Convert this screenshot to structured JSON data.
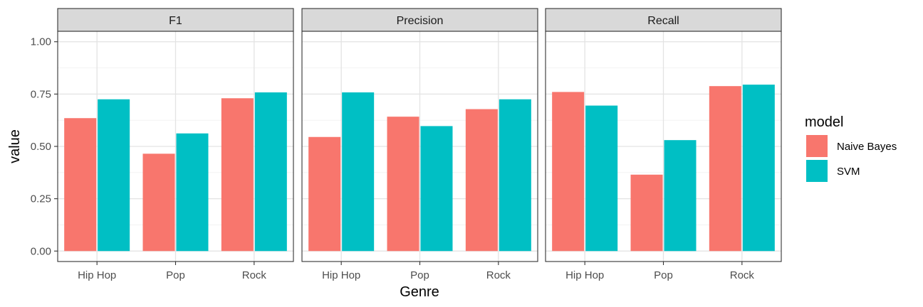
{
  "chart_data": {
    "type": "bar",
    "facet_layout": "faceted horizontally by metric",
    "panels": [
      {
        "title": "F1",
        "categories": [
          "Hip Hop",
          "Pop",
          "Rock"
        ],
        "series": [
          {
            "name": "Naive Bayes",
            "values": [
              0.635,
              0.465,
              0.73
            ]
          },
          {
            "name": "SVM",
            "values": [
              0.725,
              0.562,
              0.758
            ]
          }
        ]
      },
      {
        "title": "Precision",
        "categories": [
          "Hip Hop",
          "Pop",
          "Rock"
        ],
        "series": [
          {
            "name": "Naive Bayes",
            "values": [
              0.545,
              0.642,
              0.678
            ]
          },
          {
            "name": "SVM",
            "values": [
              0.758,
              0.597,
              0.725
            ]
          }
        ]
      },
      {
        "title": "Recall",
        "categories": [
          "Hip Hop",
          "Pop",
          "Rock"
        ],
        "series": [
          {
            "name": "Naive Bayes",
            "values": [
              0.76,
              0.365,
              0.788
            ]
          },
          {
            "name": "SVM",
            "values": [
              0.695,
              0.53,
              0.795
            ]
          }
        ]
      }
    ],
    "xlabel": "Genre",
    "ylabel": "value",
    "ylim": [
      -0.05,
      1.05
    ],
    "yticks": [
      0.0,
      0.25,
      0.5,
      0.75,
      1.0
    ],
    "ytick_labels": [
      "0.00",
      "0.25",
      "0.50",
      "0.75",
      "1.00"
    ],
    "legend": {
      "title": "model",
      "position": "right",
      "entries": [
        {
          "name": "Naive Bayes",
          "color": "#F8766D"
        },
        {
          "name": "SVM",
          "color": "#00BFC4"
        }
      ]
    },
    "grid": true
  }
}
